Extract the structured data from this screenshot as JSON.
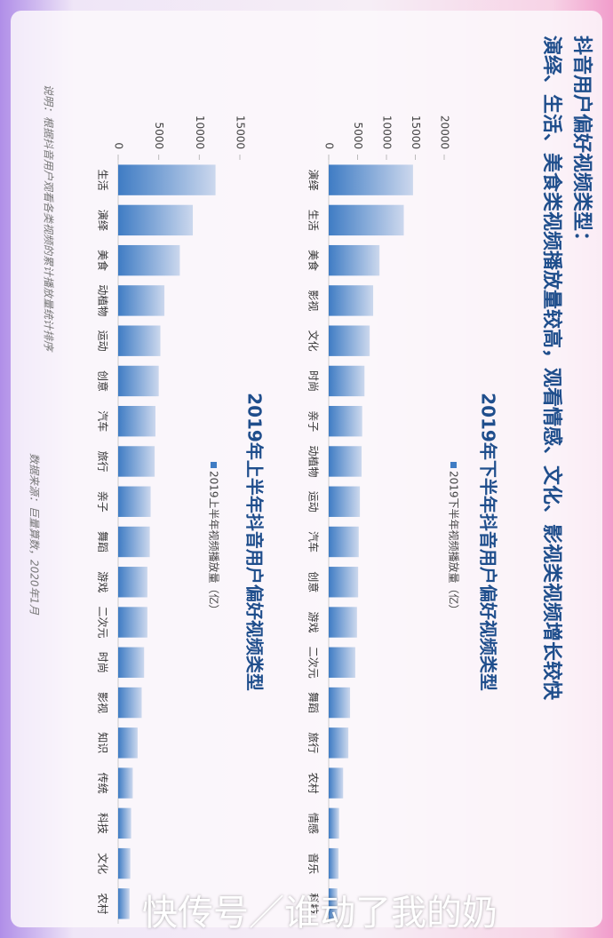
{
  "title": "抖音用户偏好视频类型：",
  "subtitle": "演绎、生活、美食类视频播放量较高，观看情感、文化、影视类视频增长较快",
  "chart_data": [
    {
      "type": "bar",
      "title": "2019年下半年抖音用户偏好视频类型",
      "categories": [
        "演绎",
        "生活",
        "美食",
        "影视",
        "文化",
        "时尚",
        "亲子",
        "动植物",
        "运动",
        "汽车",
        "创意",
        "游戏",
        "二次元",
        "舞蹈",
        "旅行",
        "农村",
        "情感",
        "音乐",
        "科技"
      ],
      "series": [
        {
          "name": "2019下半年视频播放量（亿）",
          "color": "#3f7cc4",
          "values": [
            14600,
            13000,
            8800,
            7700,
            7100,
            6200,
            5800,
            5700,
            5400,
            5200,
            5100,
            4900,
            4600,
            3700,
            3400,
            2500,
            1800,
            1700,
            1500
          ]
        }
      ],
      "ylim": [
        0,
        20000
      ],
      "yticks": [
        0,
        5000,
        10000,
        15000,
        20000
      ]
    },
    {
      "type": "bar",
      "title": "2019年上半年抖音用户偏好视频类型",
      "categories": [
        "生活",
        "演绎",
        "美食",
        "动植物",
        "运动",
        "创意",
        "汽车",
        "旅行",
        "亲子",
        "舞蹈",
        "游戏",
        "二次元",
        "时尚",
        "影视",
        "知识",
        "传统",
        "科技",
        "文化",
        "农村"
      ],
      "series": [
        {
          "name": "2019上半年视频播放量（亿）",
          "color": "#3f7cc4",
          "values": [
            12000,
            9200,
            7600,
            5700,
            5200,
            5000,
            4600,
            4500,
            4000,
            3900,
            3600,
            3600,
            3200,
            2900,
            2400,
            1800,
            1600,
            1500,
            1400
          ]
        }
      ],
      "ylim": [
        0,
        15000
      ],
      "yticks": [
        0,
        5000,
        10000,
        15000
      ]
    }
  ],
  "note": "说明：根据抖音用户观看各类视频的累计播放量统计排序",
  "source": "数据来源：巨量算数，2020年1月",
  "watermark": "快传号／谁动了我的奶"
}
